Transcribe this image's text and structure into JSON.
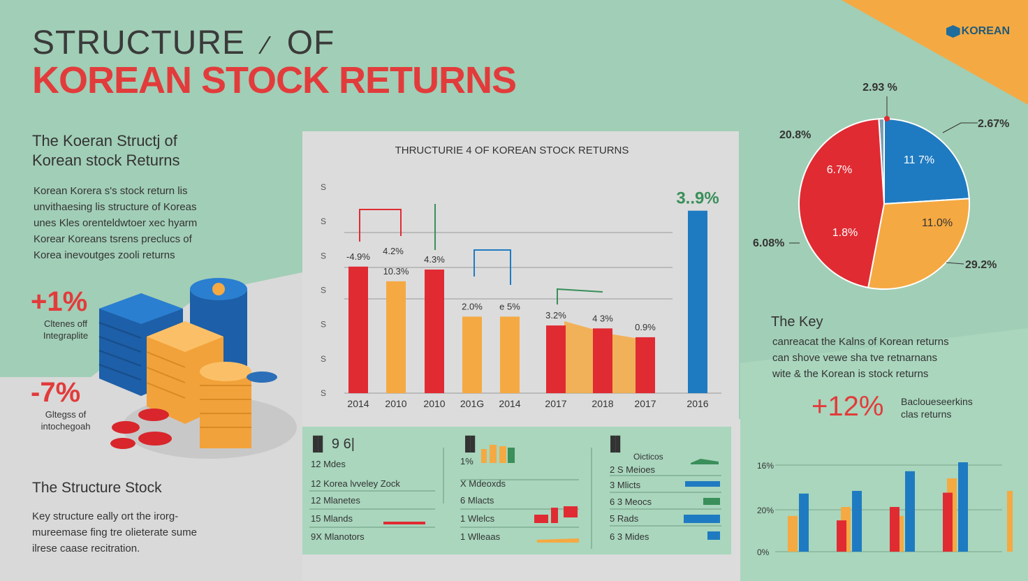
{
  "header": {
    "title_line1": "STRUCTURE",
    "title_line1_b": "OF",
    "title_line2": "KOREAN STOCK RETURNS",
    "brand": "KOREAN"
  },
  "left": {
    "subheading_line1": "The Koeran Structj of",
    "subheading_line2": "Korean stock Returns",
    "description": [
      "Korean Korera s's stock return lis",
      "unvithaesing lis structure of Koreas",
      "unes Kles orenteldwtoer xec hyarm",
      "Korear Koreans tsrens preclucs of",
      "Korea inevoutges zooli returns"
    ],
    "stat_pos": "+1%",
    "stat_pos_caption": [
      "Cltenes off",
      "Integraplite"
    ],
    "stat_neg": "-7%",
    "stat_neg_caption": [
      "Gltegss of",
      "intochegoah"
    ],
    "structure_title": "The Structure Stock",
    "structure_text": [
      "Key structure eally ort the irorg-",
      "mureemase fing tre olieterate sume",
      "ilrese caase recitration."
    ]
  },
  "colors": {
    "red": "#e02b33",
    "orange": "#f5a942",
    "blue": "#1f7bc1",
    "green": "#3a8f5a",
    "background": "#a1ceb6",
    "panel": "#dcdcdc"
  },
  "chart_data": [
    {
      "type": "bar",
      "title": "THRUCTURIE 4 OF KOREAN STOCK RETURNS",
      "categories": [
        "2014",
        "2010",
        "2010",
        "201G",
        "2014",
        "2017",
        "2018",
        "2017",
        "2016"
      ],
      "values": [
        4.3,
        3.8,
        4.2,
        2.6,
        2.6,
        2.3,
        2.2,
        1.9,
        6.2
      ],
      "value_labels": [
        "-4.9%",
        "10.3%",
        "4.3%",
        "2.0%",
        "e 5%",
        "3.2%",
        "4 3%",
        "0.9%",
        "3..9%"
      ],
      "extra_labels": [
        "4.2%"
      ],
      "bar_colors": [
        "#e02b33",
        "#f5a942",
        "#e02b33",
        "#f5a942",
        "#f5a942",
        "#e02b33",
        "#e02b33",
        "#e02b33",
        "#1f7bc1"
      ],
      "ylim": [
        0,
        7
      ],
      "y_tick_labels": [
        "S",
        "S",
        "S",
        "S",
        "S",
        "S",
        "S"
      ],
      "grid": true
    },
    {
      "type": "pie",
      "slices": [
        {
          "label": "6.7%",
          "value": 46,
          "color": "#e02b33"
        },
        {
          "label": "1.8%",
          "value": 0,
          "color": "#e02b33"
        },
        {
          "label": "11 7%",
          "value": 24,
          "color": "#1f7bc1"
        },
        {
          "label": "11.0%",
          "value": 29,
          "color": "#f5a942"
        },
        {
          "label": "",
          "value": 1,
          "color": "#7a9fb0"
        }
      ],
      "outer_labels": [
        "2.93 %",
        "2.67%",
        "20.8%",
        "6.08%",
        "29.2%"
      ]
    },
    {
      "type": "bar",
      "y_tick_labels": [
        "16%",
        "20%",
        "0%"
      ],
      "ylim": [
        0,
        100
      ],
      "series": [
        {
          "color": "#f5a942",
          "values": [
            40,
            0,
            50,
            0,
            40,
            0,
            82,
            0
          ]
        },
        {
          "color": "#1f7bc1",
          "values": [
            65,
            0,
            68,
            0,
            90,
            0,
            100,
            0
          ]
        },
        {
          "color": "#e02b33",
          "values": [
            0,
            35,
            0,
            50,
            0,
            66,
            0,
            0
          ]
        },
        {
          "color": "#f5a942",
          "values": [
            0,
            0,
            0,
            0,
            0,
            0,
            0,
            68
          ]
        }
      ]
    }
  ],
  "bottom_table": {
    "col1": {
      "head": "9 6|",
      "rows": [
        {
          "num": "12",
          "label": "Mdes"
        },
        {
          "num": "12",
          "label": "Korea lvveley Zock"
        },
        {
          "num": "12",
          "label": "Mlanetes"
        },
        {
          "num": "15",
          "label": "Mlands"
        },
        {
          "num": "9X",
          "label": "Mlanotors"
        }
      ]
    },
    "col2": {
      "rows": [
        {
          "num": "1%",
          "label": ""
        },
        {
          "num": "X",
          "label": "Mdeoxds"
        },
        {
          "num": "6",
          "label": "Mlacts"
        },
        {
          "num": "1",
          "label": "Wlelcs"
        },
        {
          "num": "1",
          "label": "Wlleaas"
        }
      ]
    },
    "col3": {
      "head": "Oicticos",
      "rows": [
        {
          "num": "2 S",
          "label": "Meioes"
        },
        {
          "num": "3",
          "label": "Mlicts"
        },
        {
          "num": "6 3",
          "label": "Meocs"
        },
        {
          "num": "5",
          "label": "Rads"
        },
        {
          "num": "6 3",
          "label": "Mides"
        }
      ]
    }
  },
  "right": {
    "key_title": "The Key",
    "key_text": [
      "canreacat the Kalns of Korean returns",
      "can shove vewe sha tve retnarnans",
      "wite & the Korean is stock returns"
    ],
    "key_stat": "+12%",
    "key_note": [
      "Bacloueseerkins",
      "clas returns"
    ]
  }
}
